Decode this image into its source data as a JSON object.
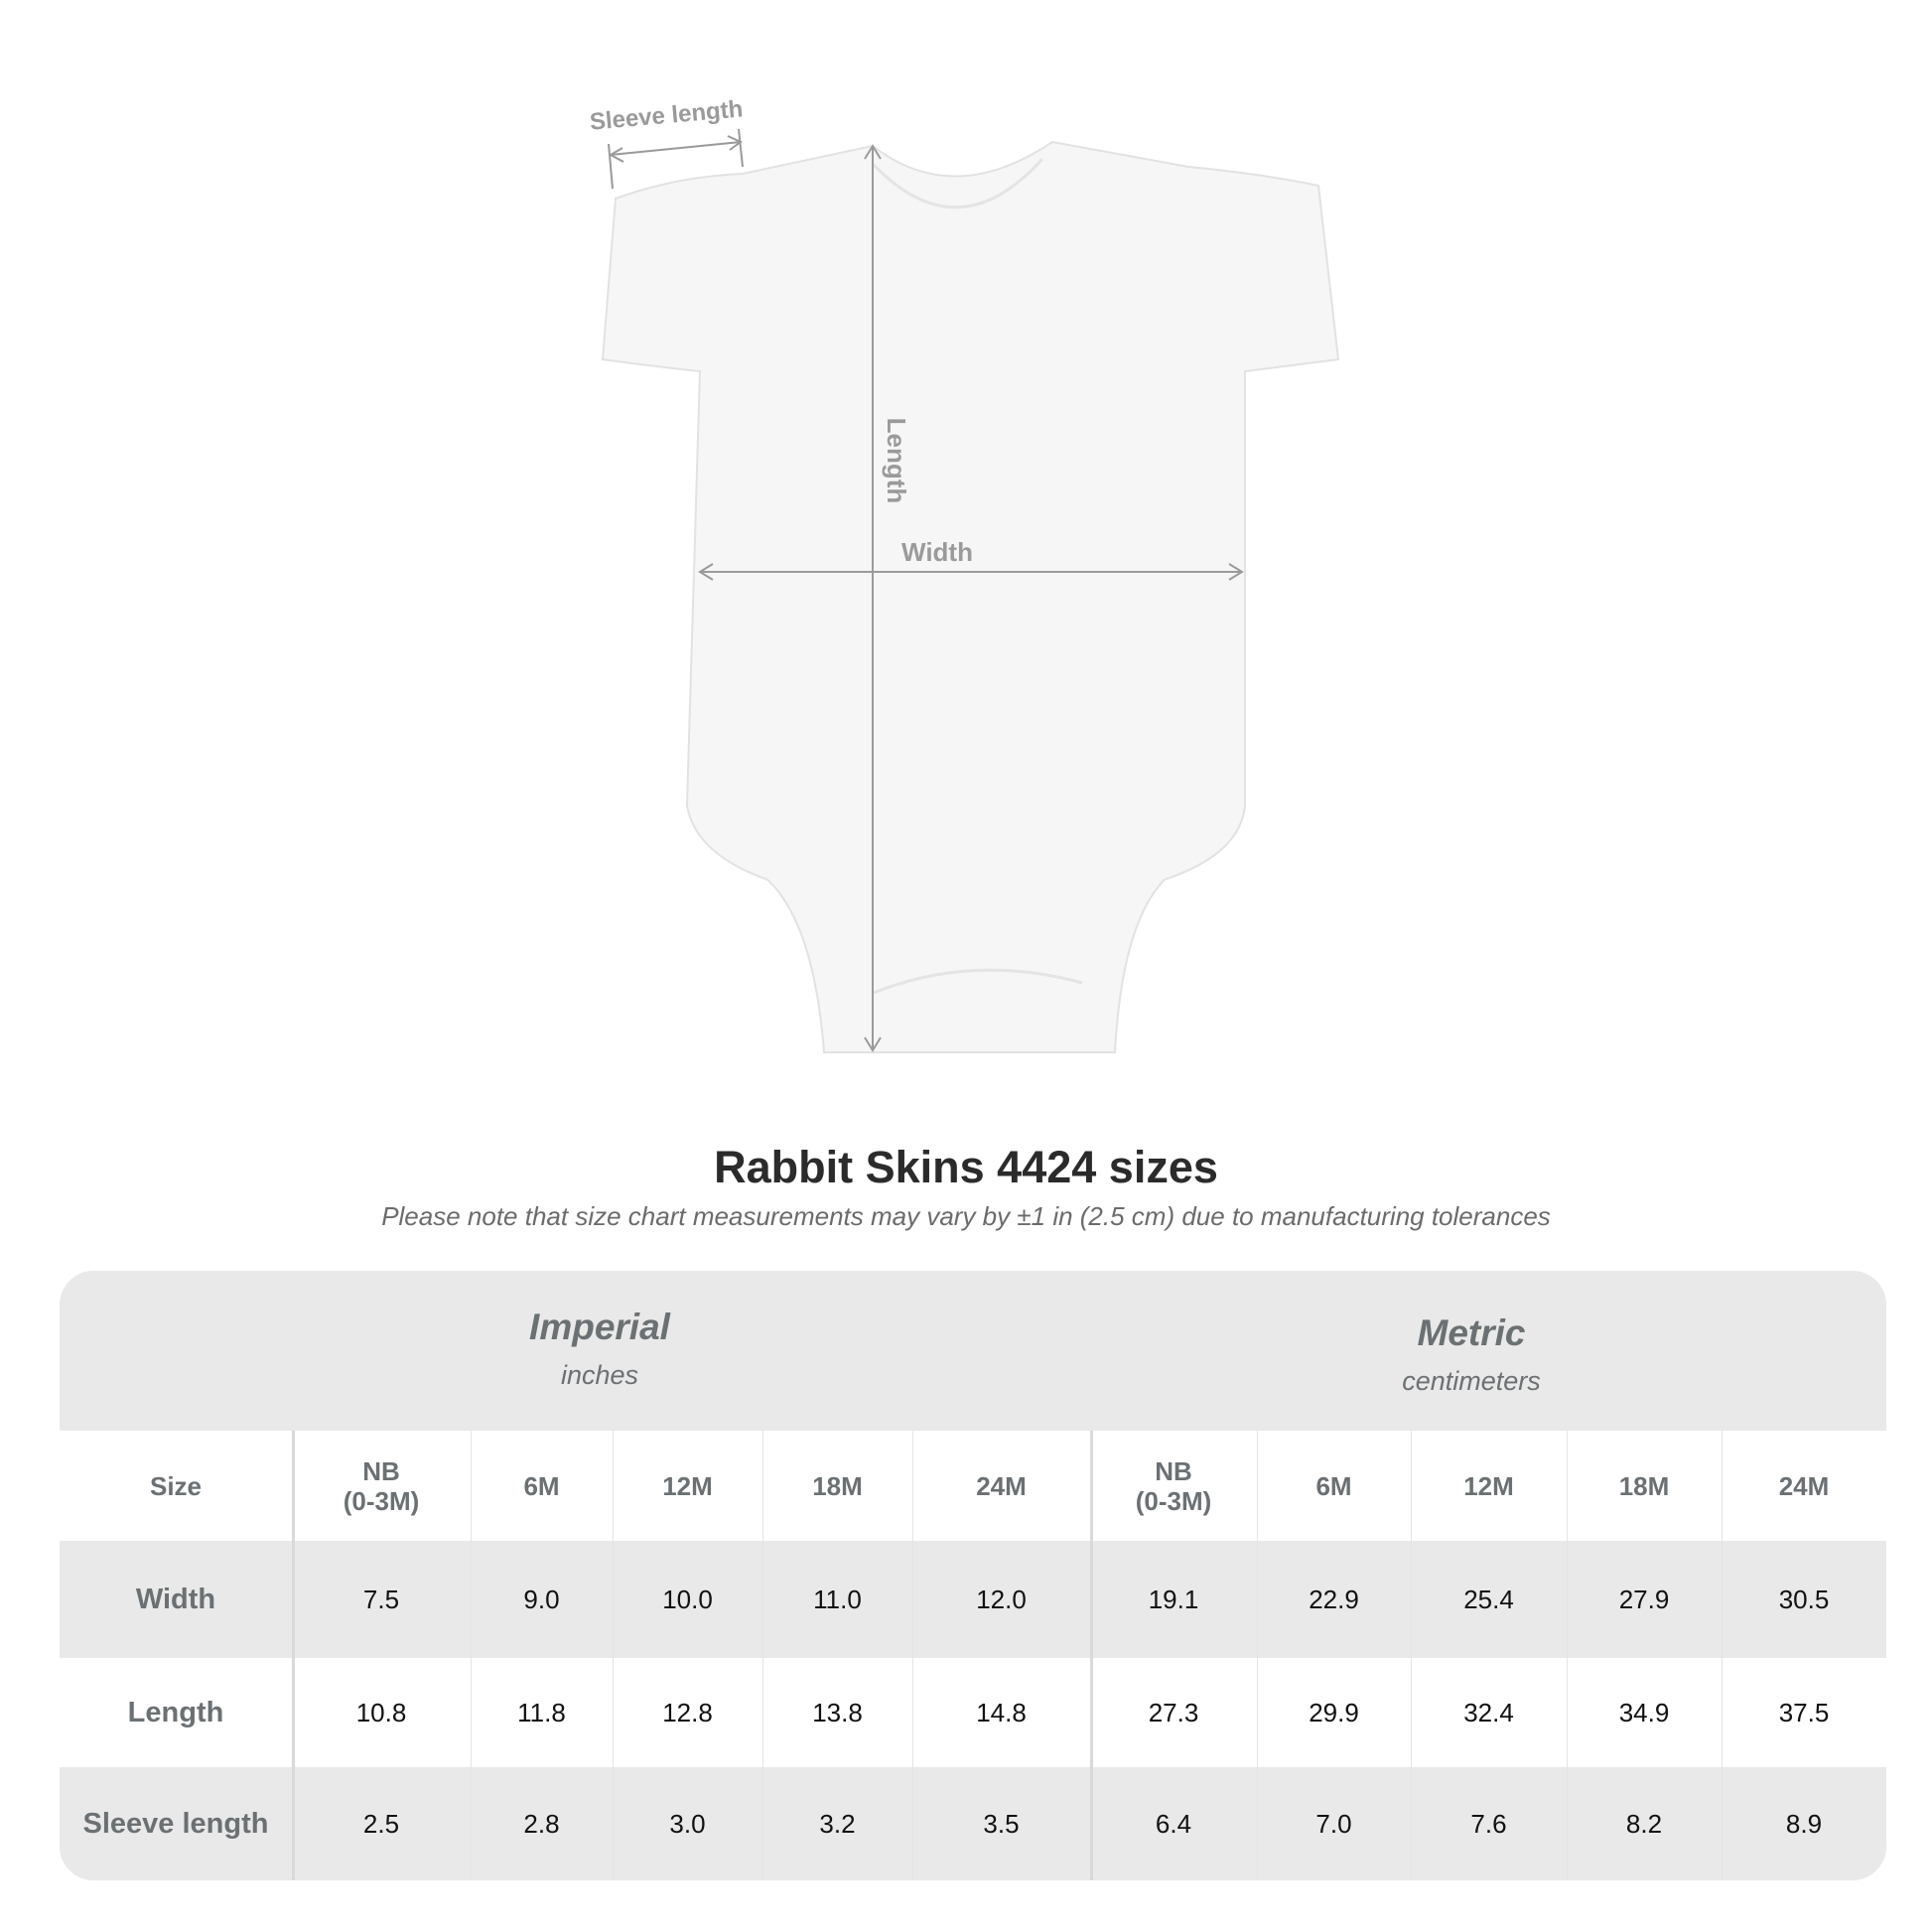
{
  "diagram": {
    "labels": {
      "sleeve": "Sleeve length",
      "length": "Length",
      "width": "Width"
    },
    "garment_color": "#f6f6f6",
    "arrow_color": "#9a9a9a"
  },
  "title": "Rabbit Skins 4424 sizes",
  "subtitle": "Please note that size chart measurements may vary by ±1 in (2.5 cm) due to manufacturing tolerances",
  "table": {
    "groups": [
      {
        "name": "Imperial",
        "unit": "inches"
      },
      {
        "name": "Metric",
        "unit": "centimeters"
      }
    ],
    "size_label": "Size",
    "sizes": [
      "NB\n(0-3M)",
      "6M",
      "12M",
      "18M",
      "24M",
      "NB\n(0-3M)",
      "6M",
      "12M",
      "18M",
      "24M"
    ],
    "rows": [
      {
        "label": "Width",
        "values": [
          "7.5",
          "9.0",
          "10.0",
          "11.0",
          "12.0",
          "19.1",
          "22.9",
          "25.4",
          "27.9",
          "30.5"
        ]
      },
      {
        "label": "Length",
        "values": [
          "10.8",
          "11.8",
          "12.8",
          "13.8",
          "14.8",
          "27.3",
          "29.9",
          "32.4",
          "34.9",
          "37.5"
        ]
      },
      {
        "label": "Sleeve length",
        "values": [
          "2.5",
          "2.8",
          "3.0",
          "3.2",
          "3.5",
          "6.4",
          "7.0",
          "7.6",
          "8.2",
          "8.9"
        ]
      }
    ],
    "colors": {
      "band": "#e9e9e9",
      "label": "#6b7073"
    }
  }
}
